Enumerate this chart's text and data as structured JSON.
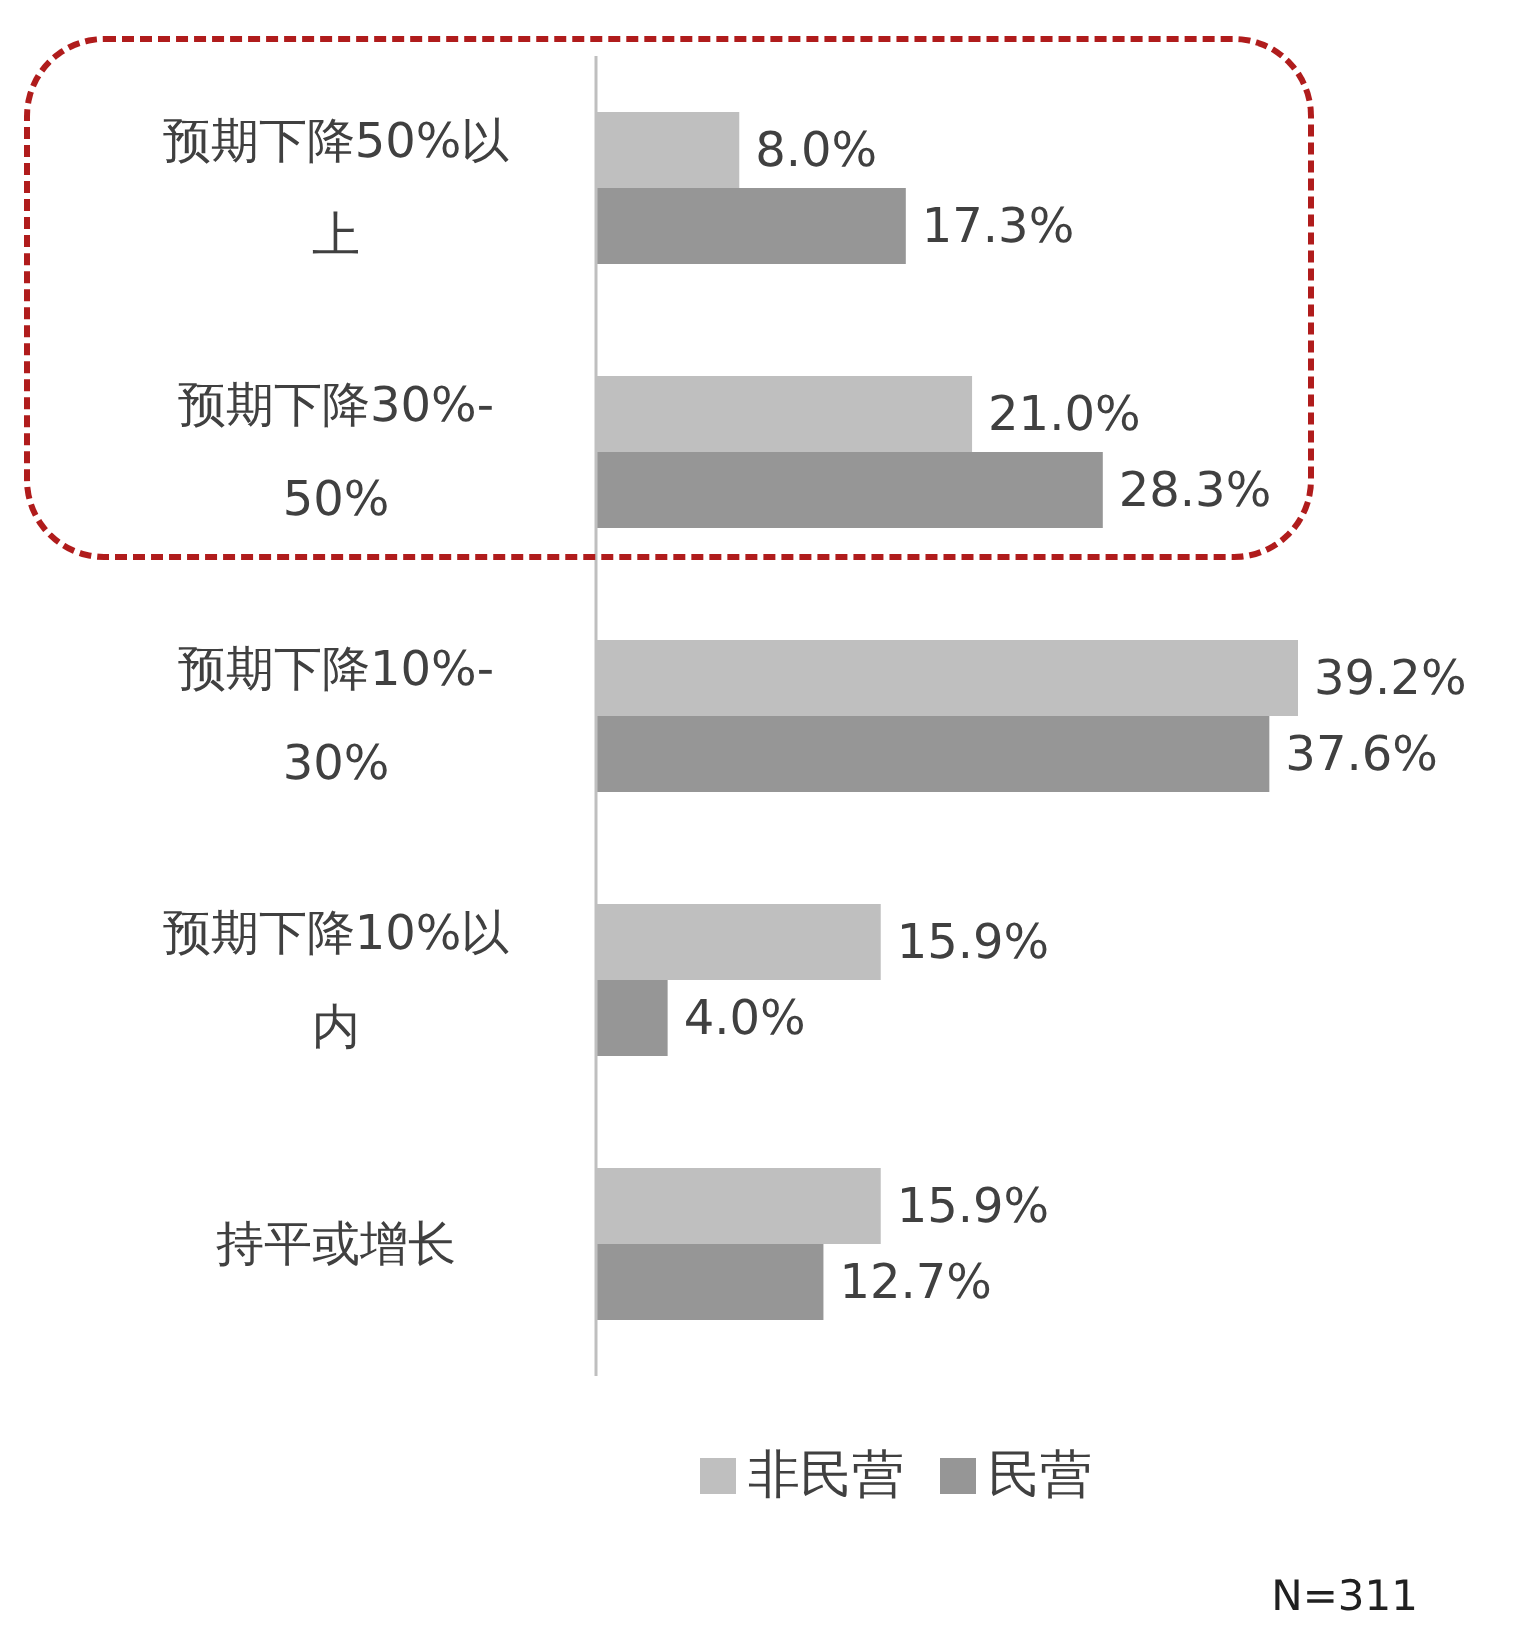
{
  "chart_data": {
    "type": "bar",
    "orientation": "horizontal",
    "categories": [
      "预期下降50%以上",
      "预期下降30%-50%",
      "预期下降10%-30%",
      "预期下降10%以内",
      "持平或增长"
    ],
    "series": [
      {
        "name": "非民营",
        "color": "#bfbfbf",
        "values": [
          8.0,
          21.0,
          39.2,
          15.9,
          15.9
        ],
        "value_labels": [
          "8.0%",
          "21.0%",
          "39.2%",
          "15.9%",
          "15.9%"
        ]
      },
      {
        "name": "民营",
        "color": "#969696",
        "values": [
          17.3,
          28.3,
          37.6,
          4.0,
          12.7
        ],
        "value_labels": [
          "17.3%",
          "28.3%",
          "37.6%",
          "4.0%",
          "12.7%"
        ]
      }
    ],
    "legend": "bottom",
    "annotations": [
      "N=311"
    ]
  }
}
